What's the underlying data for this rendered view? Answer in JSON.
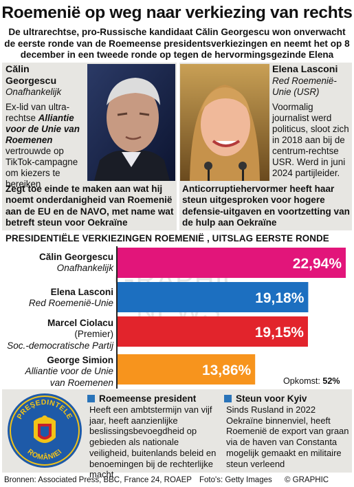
{
  "title": "Roemenië op weg naar verkiezing van rechts",
  "intro": "De ultrarechtse, pro-Russische kandidaat Călin Georgescu won onverwacht de eerste ronde van de Roemeense presidentsverkiezingen en neemt het op 8 december in een tweede ronde op tegen de hervormingsgezinde Elena Lasconi",
  "candidates": {
    "left": {
      "name_line1": "Călin",
      "name_line2": "Georgescu",
      "party": "Onafhankelijk",
      "bio_pre": "Ex-lid van ultra-rechtse ",
      "bio_em": "Alliantie voor de Unie van Roemenen",
      "bio_post": " vertrouwde op TikTok-campagne om kiezers te bereiken",
      "quote": "Zegt toe einde te maken aan wat hij noemt onderdanigheid van Roemenië aan de EU en de NAVO, met name wat betreft steun voor Oekraïne"
    },
    "right": {
      "name": "Elena Lasconi",
      "party": "Red Roemenië-Unie (USR)",
      "bio": "Voormalig journalist werd politicus, sloot zich in 2018 aan bij de centrum-rechtse USR. Werd in juni 2024 partijleider.",
      "quote": "Anticorruptiehervormer heeft haar steun uitgesproken voor hogere defensie-uitgaven en voortzetting van de hulp aan Oekraïne"
    }
  },
  "watermark": "GRAPHIC NEWS",
  "chart_data": {
    "type": "bar",
    "title": "PRESIDENTIËLE VERKIEZINGEN ROEMENIË , UITSLAG EERSTE RONDE",
    "categories": [
      "Călin Georgescu",
      "Elena Lasconi",
      "Marcel Ciolacu",
      "George Simion"
    ],
    "subtitles": [
      [
        "Onafhankelijk"
      ],
      [
        "Red Roemenië-Unie"
      ],
      [
        "(Premier)",
        "Soc.-democratische Partij"
      ],
      [
        "Alliantie voor de Unie",
        "van Roemenen"
      ]
    ],
    "values": [
      22.94,
      19.18,
      19.15,
      13.86
    ],
    "labels": [
      "22,94%",
      "19,18%",
      "19,15%",
      "13,86%"
    ],
    "colors": [
      "#e2157a",
      "#1c6fc0",
      "#e2242c",
      "#f7941d"
    ],
    "xlim": [
      0,
      22.94
    ],
    "turnout_label": "Opkomst: ",
    "turnout_value": "52%"
  },
  "info": {
    "left_title": "Roemeense president",
    "left_body": "Heeft een ambtstermijn van vijf jaar, heeft aanzienlijke beslissingsbevoegdheid op gebieden als nationale veiligheid, buitenlands beleid en benoemingen bij de rechterlijke macht",
    "right_title": "Steun voor Kyiv",
    "right_body": "Sinds Rusland in 2022 Oekraïne binnenviel, heeft Roemenië de export van graan via de haven van Constanta mogelijk gemaakt en militaire steun verleend",
    "seal_top": "PREŞEDINTELE",
    "seal_bottom": "ROMÂNIEI",
    "accent": "#2a74b9"
  },
  "footer": {
    "sources": "Bronnen: Associated Press, BBC, France 24, ROAEP",
    "photos": "Foto's: Getty Images",
    "copyright": "© GRAPHIC NEWS"
  }
}
